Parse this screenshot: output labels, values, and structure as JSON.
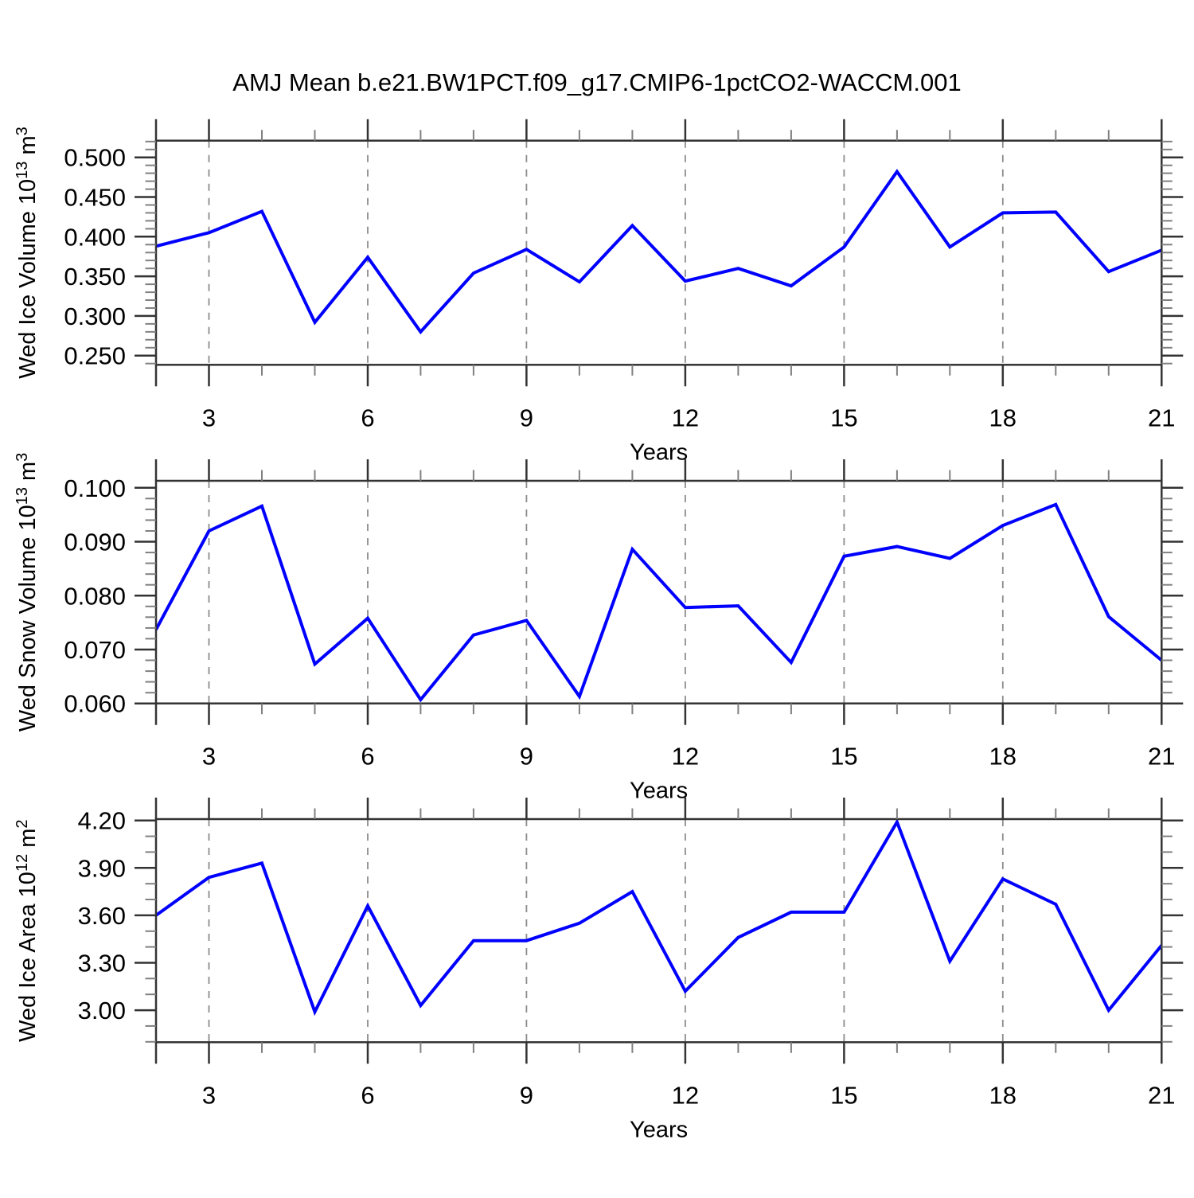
{
  "title": "AMJ Mean b.e21.BW1PCT.f09_g17.CMIP6-1pctCO2-WACCM.001",
  "colors": {
    "line": "#0000ff",
    "box": "#333333",
    "major_tick": "#333333",
    "minor_tick": "#808080",
    "gridline": "#8c8c8c",
    "text": "#000000",
    "background": "#ffffff"
  },
  "chart_data": [
    {
      "type": "line",
      "panel": "top",
      "ylabel": "Wed Ice Volume 10^13 m^3",
      "ylabel_parts": [
        {
          "text": "Wed Ice Volume 10"
        },
        {
          "text": "13",
          "sup": true
        },
        {
          "text": " m"
        },
        {
          "text": "3",
          "sup": true
        }
      ],
      "xlabel": "Years",
      "xlim": [
        2,
        21
      ],
      "ylim": [
        0.2384,
        0.5211
      ],
      "x_major_ticks": [
        3,
        6,
        9,
        12,
        15,
        18,
        21
      ],
      "x_tick_labels": [
        "3",
        "6",
        "9",
        "12",
        "15",
        "18",
        "21"
      ],
      "x_minor_ticks": [
        4,
        5,
        7,
        8,
        10,
        11,
        13,
        14,
        16,
        17,
        19,
        20
      ],
      "x_edge_ticks": [
        2
      ],
      "x_gridlines": [
        3,
        6,
        9,
        12,
        15,
        18
      ],
      "yticks": {
        "values": [
          0.5,
          0.45,
          0.4,
          0.35,
          0.3,
          0.25
        ],
        "labels": [
          "0.500",
          "0.450",
          "0.400",
          "0.350",
          "0.300",
          "0.250"
        ]
      },
      "y_minor_step": 0.01,
      "grid": "vertical-dashed",
      "legend": "none",
      "x": [
        2,
        3,
        4,
        5,
        6,
        7,
        8,
        9,
        10,
        11,
        12,
        13,
        14,
        15,
        16,
        17,
        18,
        19,
        20,
        21
      ],
      "values": [
        0.388,
        0.405,
        0.432,
        0.292,
        0.374,
        0.28,
        0.354,
        0.384,
        0.343,
        0.414,
        0.344,
        0.36,
        0.338,
        0.387,
        0.482,
        0.387,
        0.43,
        0.431,
        0.356,
        0.383
      ]
    },
    {
      "type": "line",
      "panel": "middle",
      "ylabel": "Wed Snow Volume 10^13 m^3",
      "ylabel_parts": [
        {
          "text": "Wed Snow Volume 10"
        },
        {
          "text": "13",
          "sup": true
        },
        {
          "text": " m"
        },
        {
          "text": "3",
          "sup": true
        }
      ],
      "xlabel": "Years",
      "xlim": [
        2,
        21
      ],
      "ylim": [
        0.06,
        0.1013
      ],
      "x_major_ticks": [
        3,
        6,
        9,
        12,
        15,
        18,
        21
      ],
      "x_tick_labels": [
        "3",
        "6",
        "9",
        "12",
        "15",
        "18",
        "21"
      ],
      "x_minor_ticks": [
        4,
        5,
        7,
        8,
        10,
        11,
        13,
        14,
        16,
        17,
        19,
        20
      ],
      "x_edge_ticks": [
        2
      ],
      "x_gridlines": [
        3,
        6,
        9,
        12,
        15,
        18
      ],
      "yticks": {
        "values": [
          0.1,
          0.09,
          0.08,
          0.07,
          0.06
        ],
        "labels": [
          "0.100",
          "0.090",
          "0.080",
          "0.070",
          "0.060"
        ]
      },
      "y_minor_step": 0.002,
      "grid": "vertical-dashed",
      "legend": "none",
      "x": [
        2,
        3,
        4,
        5,
        6,
        7,
        8,
        9,
        10,
        11,
        12,
        13,
        14,
        15,
        16,
        17,
        18,
        19,
        20,
        21
      ],
      "values": [
        0.0737,
        0.092,
        0.0966,
        0.0673,
        0.0758,
        0.0607,
        0.0727,
        0.0754,
        0.0613,
        0.0886,
        0.0778,
        0.0781,
        0.0676,
        0.0873,
        0.0891,
        0.0869,
        0.093,
        0.0969,
        0.0761,
        0.068
      ]
    },
    {
      "type": "line",
      "panel": "bottom",
      "ylabel": "Wed Ice Area 10^12 m^2",
      "ylabel_parts": [
        {
          "text": "Wed Ice Area 10"
        },
        {
          "text": "12",
          "sup": true
        },
        {
          "text": " m"
        },
        {
          "text": "2",
          "sup": true
        }
      ],
      "xlabel": "Years",
      "xlim": [
        2,
        21
      ],
      "ylim": [
        2.7975,
        4.2086
      ],
      "x_major_ticks": [
        3,
        6,
        9,
        12,
        15,
        18,
        21
      ],
      "x_tick_labels": [
        "3",
        "6",
        "9",
        "12",
        "15",
        "18",
        "21"
      ],
      "x_minor_ticks": [
        4,
        5,
        7,
        8,
        10,
        11,
        13,
        14,
        16,
        17,
        19,
        20
      ],
      "x_edge_ticks": [
        2
      ],
      "x_gridlines": [
        3,
        6,
        9,
        12,
        15,
        18
      ],
      "yticks": {
        "values": [
          4.2,
          3.9,
          3.6,
          3.3,
          3.0
        ],
        "labels": [
          "4.20",
          "3.90",
          "3.60",
          "3.30",
          "3.00"
        ]
      },
      "y_minor_step": 0.1,
      "grid": "vertical-dashed",
      "legend": "none",
      "x": [
        2,
        3,
        4,
        5,
        6,
        7,
        8,
        9,
        10,
        11,
        12,
        13,
        14,
        15,
        16,
        17,
        18,
        19,
        20,
        21
      ],
      "values": [
        3.6,
        3.84,
        3.93,
        2.99,
        3.66,
        3.03,
        3.44,
        3.44,
        3.55,
        3.75,
        3.12,
        3.46,
        3.62,
        3.62,
        4.19,
        3.31,
        3.83,
        3.67,
        3.0,
        3.41
      ]
    }
  ]
}
